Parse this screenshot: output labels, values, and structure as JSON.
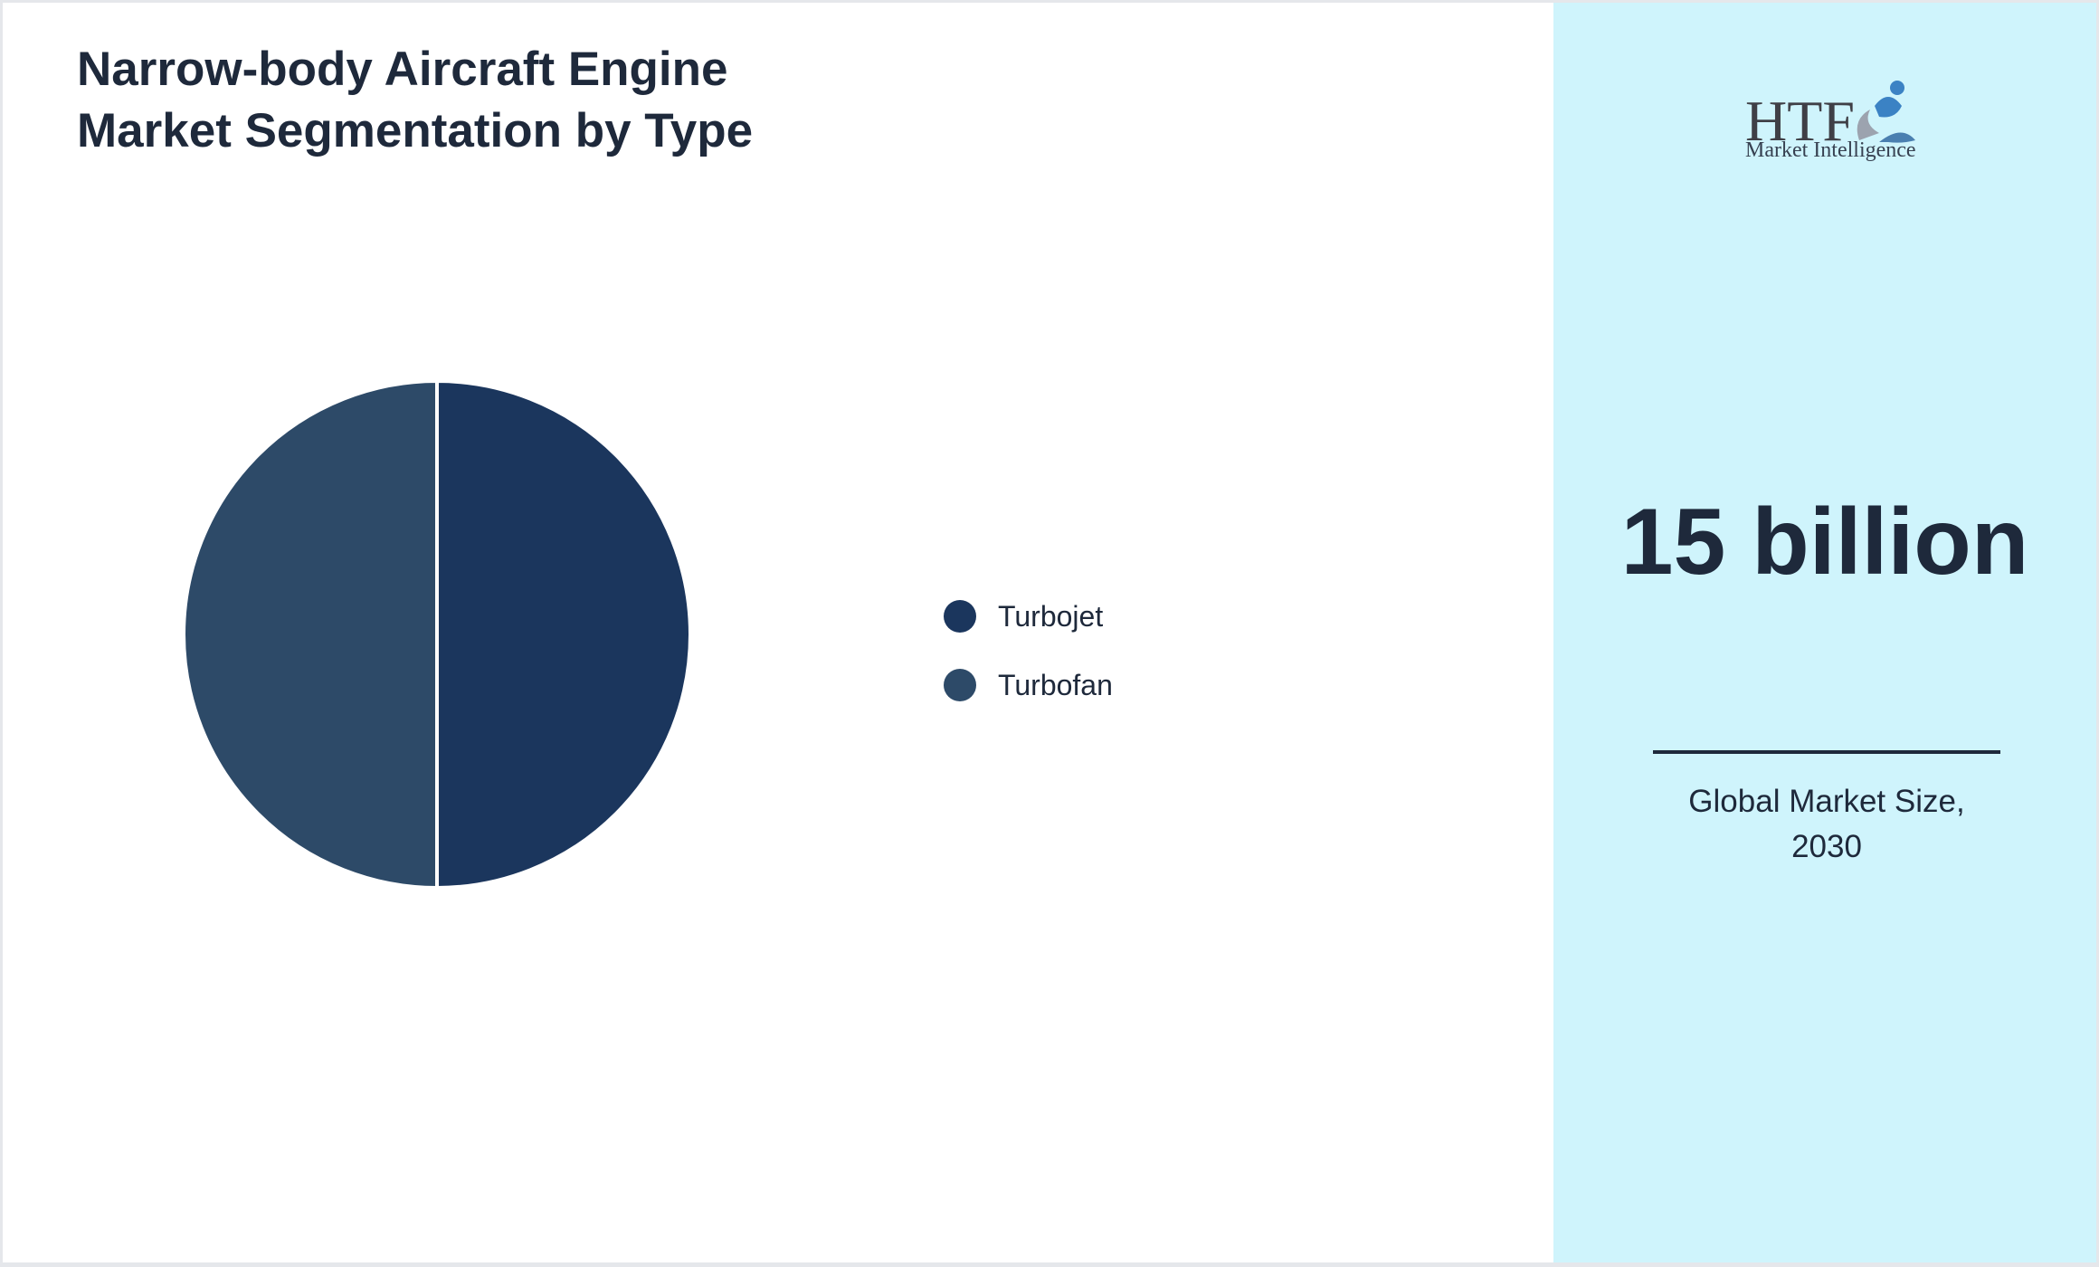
{
  "title": "Narrow-body Aircraft Engine Market Segmentation by Type",
  "chart_data": {
    "type": "pie",
    "title": "Narrow-body Aircraft Engine Market Segmentation by Type",
    "categories": [
      "Turbojet",
      "Turbofan"
    ],
    "values": [
      50,
      50
    ],
    "colors": [
      "#1b365d",
      "#2d4a68"
    ],
    "legend_position": "right"
  },
  "side_panel": {
    "logo_brand": "HTF",
    "logo_text": "Market Intelligence",
    "market_value": "15 billion",
    "caption": "Global Market Size, 2030",
    "background": "#cff4fc"
  }
}
